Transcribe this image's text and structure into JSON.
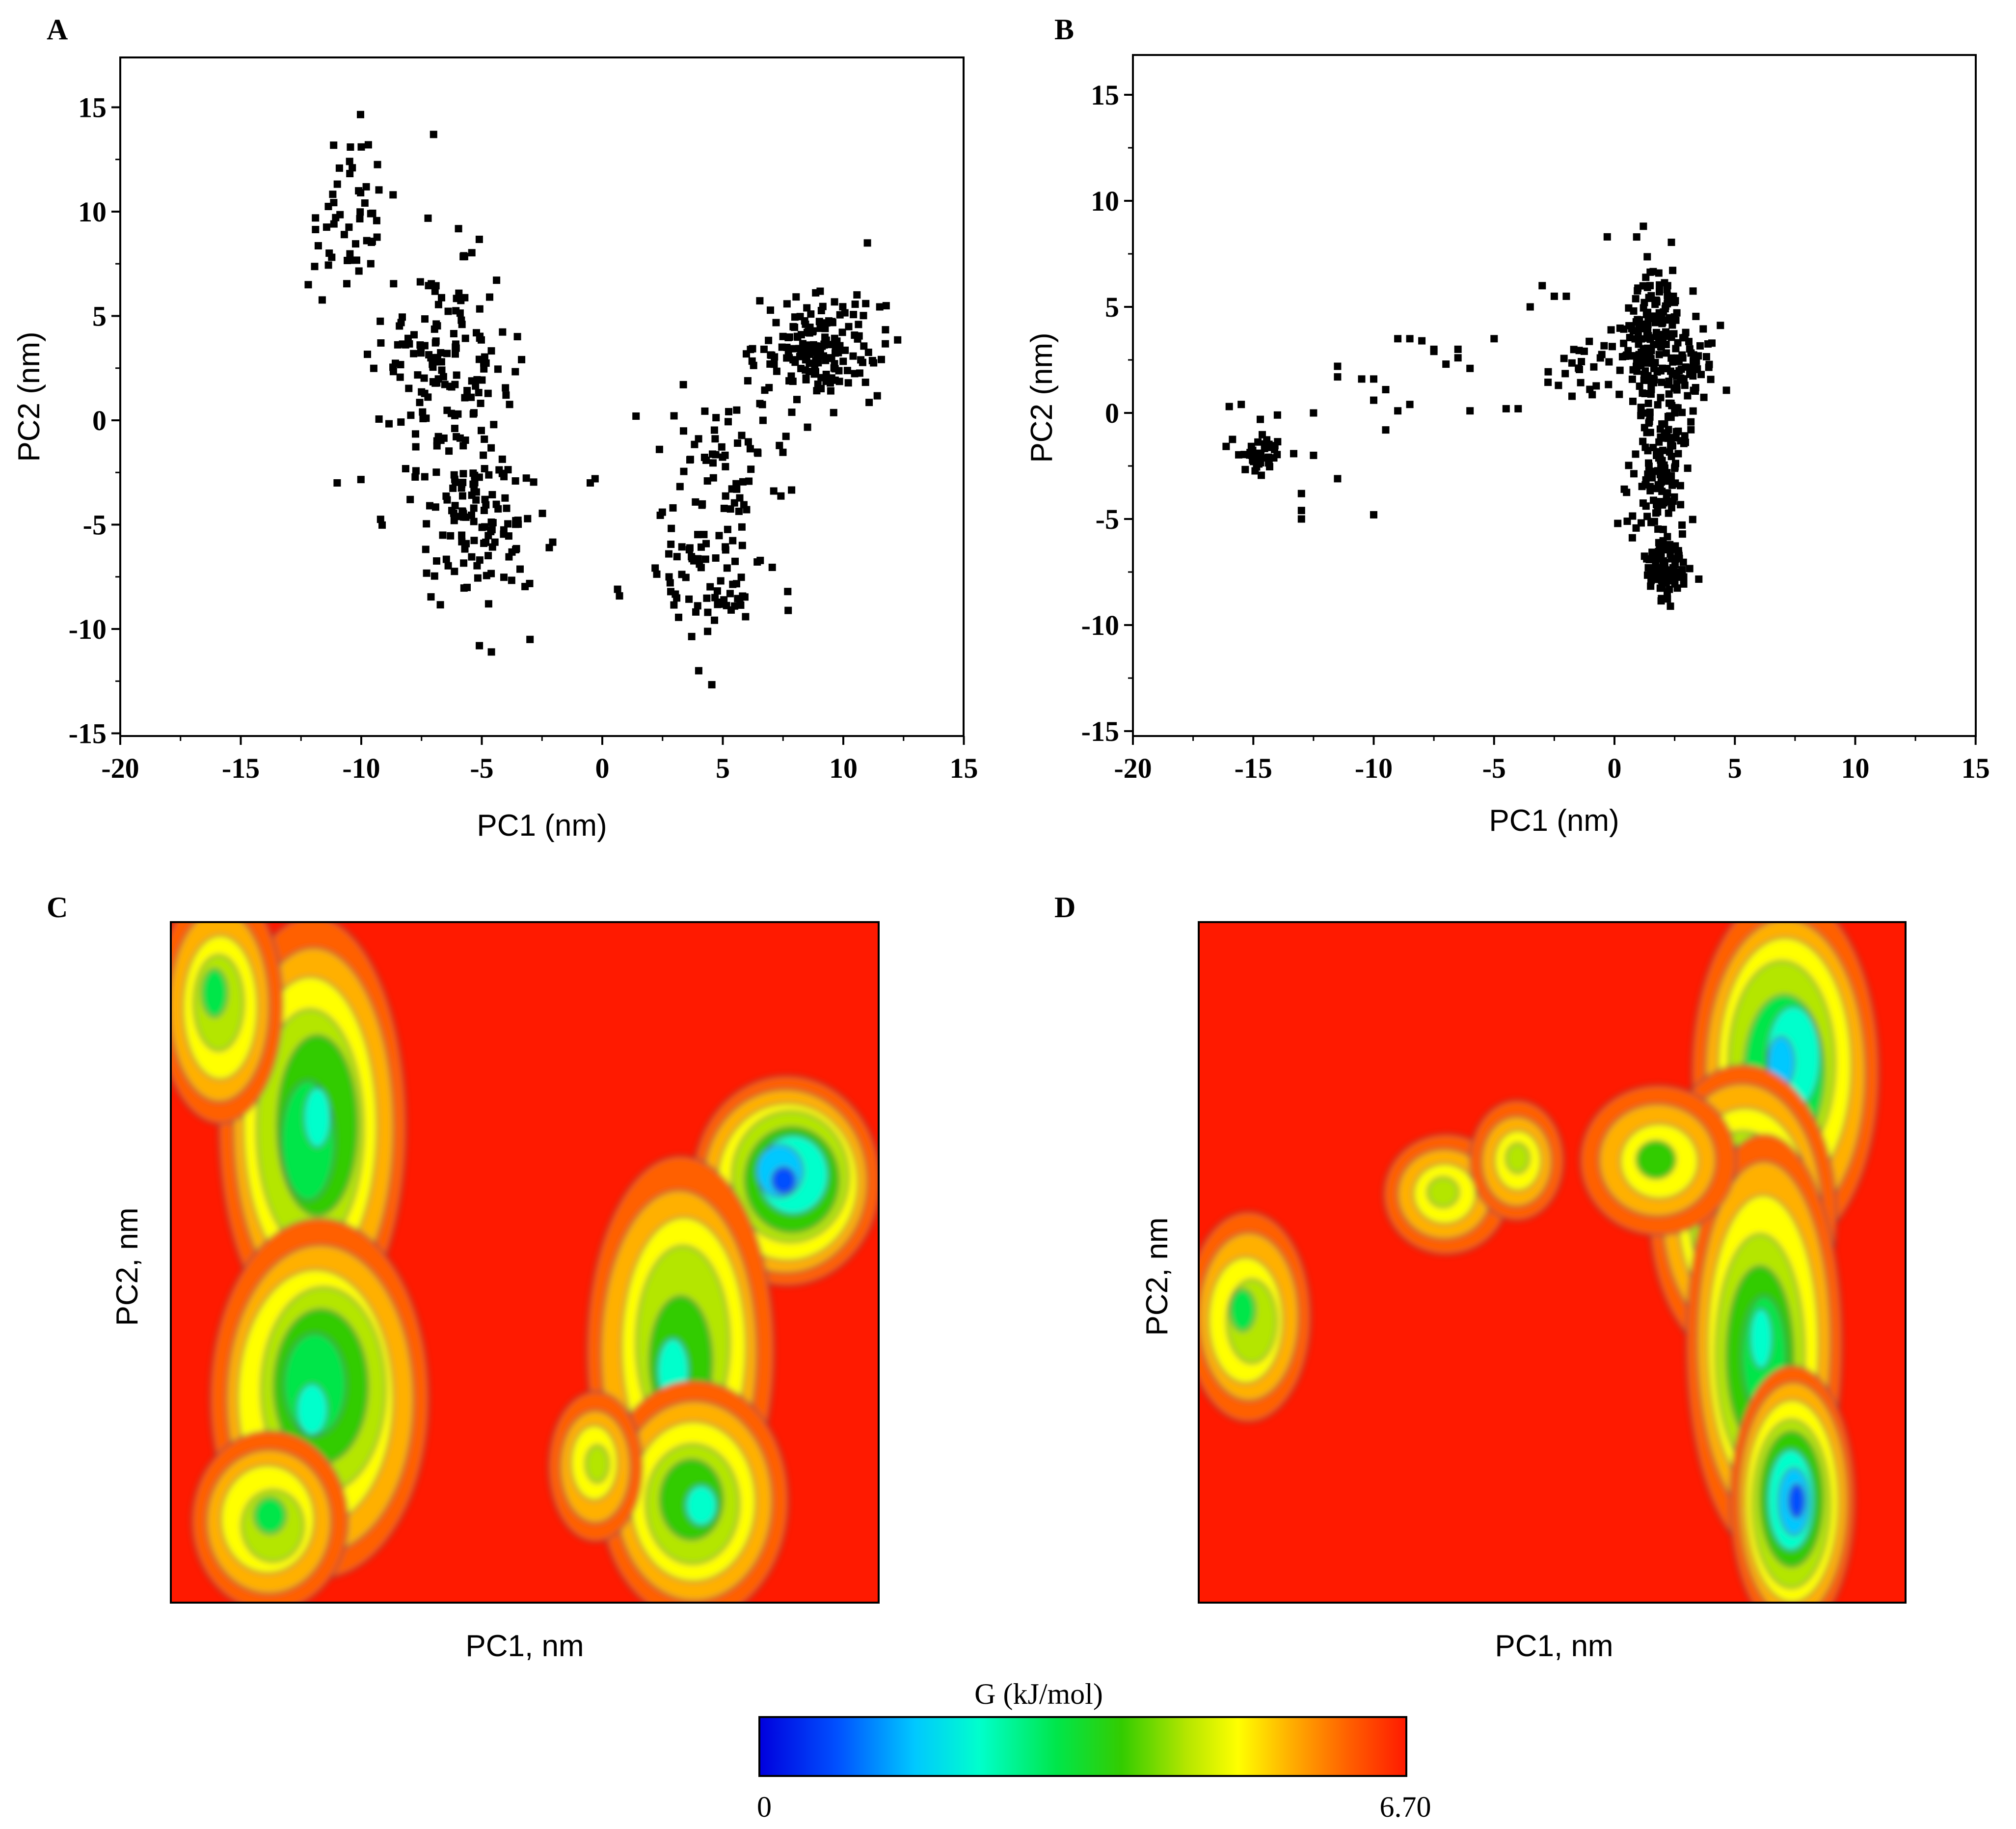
{
  "colors": {
    "background": "#ffffff",
    "point": "#000000",
    "fes_background": "#ff1a00",
    "contour_line": "#4a4a4a",
    "colorbar": [
      "#0000dd",
      "#0050ff",
      "#00c8ff",
      "#00ffcc",
      "#00e64a",
      "#33cc00",
      "#b4e600",
      "#ffff00",
      "#ffb000",
      "#ff6000",
      "#ff1a00"
    ]
  },
  "colorbar": {
    "title": "G (kJ/mol)",
    "min_label": "0",
    "max_label": "6.70",
    "range": [
      0,
      6.7
    ]
  },
  "chart_data": [
    {
      "panel": "A",
      "type": "scatter",
      "xlabel": "PC1 (nm)",
      "ylabel": "PC2 (nm)",
      "xlim": [
        -20,
        15
      ],
      "ylim": [
        -15,
        17
      ],
      "xticks": [
        "-20",
        "-15",
        "-10",
        "-5",
        "0",
        "5",
        "10",
        "15"
      ],
      "yticks": [
        "-15",
        "-10",
        "-5",
        "0",
        "5",
        "10",
        "15"
      ],
      "clusters": [
        {
          "center": [
            -10.5,
            9.5
          ],
          "spread": [
            1.3,
            2.8
          ],
          "count": 50
        },
        {
          "center": [
            -6.5,
            2.5
          ],
          "spread": [
            1.8,
            3.5
          ],
          "count": 160
        },
        {
          "center": [
            -5.0,
            -5.0
          ],
          "spread": [
            1.8,
            2.5
          ],
          "count": 110
        },
        {
          "center": [
            9.0,
            3.5
          ],
          "spread": [
            1.7,
            1.6
          ],
          "count": 170
        },
        {
          "center": [
            5.0,
            -2.0
          ],
          "spread": [
            2.0,
            2.5
          ],
          "count": 60
        },
        {
          "center": [
            4.5,
            -7.5
          ],
          "spread": [
            2.0,
            2.3
          ],
          "count": 80
        }
      ],
      "points": [
        [
          -7,
          13.7
        ],
        [
          -10,
          13.1
        ],
        [
          -11.9,
          9.7
        ],
        [
          -12.2,
          6.5
        ],
        [
          -11,
          -3
        ],
        [
          -0.5,
          -3
        ],
        [
          -0.3,
          -2.8
        ],
        [
          1.4,
          0.2
        ],
        [
          11,
          8.5
        ],
        [
          4,
          -12
        ],
        [
          -5.1,
          -10.8
        ],
        [
          -4.6,
          -11.1
        ],
        [
          -3,
          -10.5
        ],
        [
          -2.2,
          -6.1
        ]
      ]
    },
    {
      "panel": "B",
      "type": "scatter",
      "xlabel": "PC1 (nm)",
      "ylabel": "PC2 (nm)",
      "xlim": [
        -20,
        15
      ],
      "ylim": [
        -15,
        17
      ],
      "xticks": [
        "-20",
        "-15",
        "-10",
        "-5",
        "0",
        "5",
        "10",
        "15"
      ],
      "yticks": [
        "-15",
        "-10",
        "-5",
        "0",
        "5",
        "10",
        "15"
      ],
      "clusters": [
        {
          "center": [
            -14.8,
            -1.7
          ],
          "spread": [
            0.6,
            0.9
          ],
          "count": 45
        },
        {
          "center": [
            1.5,
            4.0
          ],
          "spread": [
            1.0,
            2.0
          ],
          "count": 150
        },
        {
          "center": [
            2.2,
            2.0
          ],
          "spread": [
            1.4,
            1.3
          ],
          "count": 80
        },
        {
          "center": [
            2.0,
            -3.0
          ],
          "spread": [
            0.8,
            2.5
          ],
          "count": 150
        },
        {
          "center": [
            2.2,
            -7.5
          ],
          "spread": [
            0.6,
            0.8
          ],
          "count": 90
        },
        {
          "center": [
            -1.5,
            2.2
          ],
          "spread": [
            1.2,
            1.0
          ],
          "count": 25
        }
      ],
      "points": [
        [
          -16,
          0.3
        ],
        [
          -15.5,
          0.4
        ],
        [
          -13,
          -5
        ],
        [
          -13,
          -4.6
        ],
        [
          -13,
          -3.8
        ],
        [
          -12.5,
          -2
        ],
        [
          -12.5,
          0
        ],
        [
          -11.5,
          1.7
        ],
        [
          -11.5,
          2.2
        ],
        [
          -11.5,
          -3.1
        ],
        [
          -10.5,
          1.6
        ],
        [
          -10,
          -4.8
        ],
        [
          -10,
          1.6
        ],
        [
          -10,
          0.6
        ],
        [
          -9.5,
          1.1
        ],
        [
          -9,
          3.5
        ],
        [
          -8.5,
          3.5
        ],
        [
          -8.5,
          0.4
        ],
        [
          -9,
          0.1
        ],
        [
          -9.5,
          -0.8
        ],
        [
          -8,
          3.4
        ],
        [
          -7.5,
          2.9
        ],
        [
          -7,
          2.3
        ],
        [
          -6.5,
          2.6
        ],
        [
          -6,
          2.1
        ],
        [
          -6,
          0.1
        ],
        [
          -6.5,
          3
        ],
        [
          -5,
          3.5
        ],
        [
          -4.5,
          0.2
        ],
        [
          -4,
          0.2
        ],
        [
          -3.5,
          5
        ],
        [
          -3,
          6
        ],
        [
          -0.3,
          8.3
        ],
        [
          1.2,
          8.8
        ],
        [
          -2.5,
          5.5
        ],
        [
          -2,
          5.5
        ],
        [
          -7.5,
          3
        ]
      ]
    },
    {
      "panel": "C",
      "type": "heatmap",
      "xlabel": "PC1, nm",
      "ylabel": "PC2, nm",
      "basins": [
        {
          "x": 0.2,
          "y": 0.7,
          "sx": 0.06,
          "sy": 0.14,
          "depth": 5.5
        },
        {
          "x": 0.21,
          "y": 0.3,
          "sx": 0.07,
          "sy": 0.12,
          "depth": 5.5
        },
        {
          "x": 0.07,
          "y": 0.88,
          "sx": 0.04,
          "sy": 0.08,
          "depth": 4.2
        },
        {
          "x": 0.14,
          "y": 0.12,
          "sx": 0.05,
          "sy": 0.06,
          "depth": 4.2
        },
        {
          "x": 0.87,
          "y": 0.62,
          "sx": 0.06,
          "sy": 0.07,
          "depth": 6.6
        },
        {
          "x": 0.72,
          "y": 0.37,
          "sx": 0.06,
          "sy": 0.13,
          "depth": 5.0
        },
        {
          "x": 0.74,
          "y": 0.15,
          "sx": 0.06,
          "sy": 0.08,
          "depth": 5.0
        },
        {
          "x": 0.6,
          "y": 0.2,
          "sx": 0.03,
          "sy": 0.05,
          "depth": 3.2
        }
      ]
    },
    {
      "panel": "D",
      "type": "heatmap",
      "xlabel": "PC1, nm",
      "ylabel": "PC2, nm",
      "basins": [
        {
          "x": 0.07,
          "y": 0.42,
          "sx": 0.04,
          "sy": 0.07,
          "depth": 4.2
        },
        {
          "x": 0.83,
          "y": 0.78,
          "sx": 0.06,
          "sy": 0.12,
          "depth": 6.0
        },
        {
          "x": 0.77,
          "y": 0.57,
          "sx": 0.06,
          "sy": 0.1,
          "depth": 5.6
        },
        {
          "x": 0.8,
          "y": 0.38,
          "sx": 0.05,
          "sy": 0.14,
          "depth": 5.6
        },
        {
          "x": 0.84,
          "y": 0.15,
          "sx": 0.04,
          "sy": 0.09,
          "depth": 6.6
        },
        {
          "x": 0.65,
          "y": 0.65,
          "sx": 0.05,
          "sy": 0.05,
          "depth": 3.6
        },
        {
          "x": 0.35,
          "y": 0.6,
          "sx": 0.04,
          "sy": 0.04,
          "depth": 3.0
        },
        {
          "x": 0.45,
          "y": 0.65,
          "sx": 0.03,
          "sy": 0.04,
          "depth": 3.0
        }
      ]
    }
  ]
}
